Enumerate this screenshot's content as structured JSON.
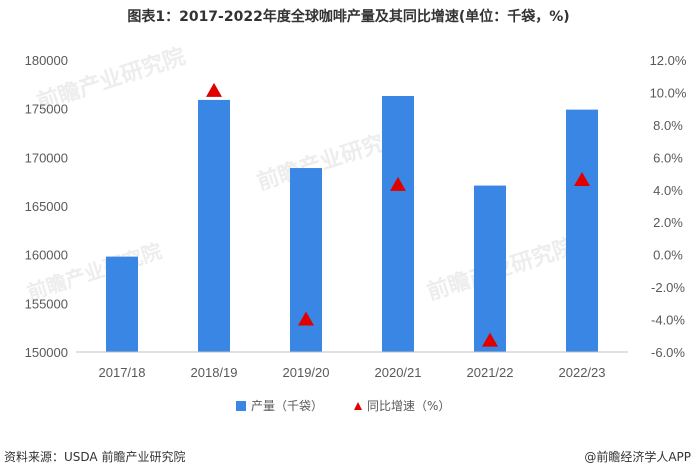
{
  "title": "图表1：2017-2022年度全球咖啡产量及其同比增速(单位：千袋，%)",
  "source_left": "资料来源：USDA 前瞻产业研究院",
  "source_right": "@前瞻经济学人APP",
  "watermark": "前瞻产业研究院",
  "colors": {
    "bar": "#3a86e4",
    "marker": "#e00000"
  },
  "chart_data": {
    "type": "bar",
    "categories": [
      "2017/18",
      "2018/19",
      "2019/20",
      "2020/21",
      "2021/22",
      "2022/23"
    ],
    "series": [
      {
        "name": "产量（千袋）",
        "type": "bar",
        "axis": "left",
        "values": [
          159800,
          175900,
          168900,
          176300,
          167100,
          174900
        ]
      },
      {
        "name": "同比增速（%）",
        "type": "scatter",
        "marker": "triangle",
        "axis": "right",
        "values": [
          null,
          10.1,
          -4.0,
          4.3,
          -5.3,
          4.6
        ]
      }
    ],
    "ylim": [
      150000,
      180000
    ],
    "yticks": [
      "150000",
      "155000",
      "160000",
      "165000",
      "170000",
      "175000",
      "180000"
    ],
    "y2lim": [
      -6.0,
      12.0
    ],
    "y2ticks": [
      "-6.0%",
      "-4.0%",
      "-2.0%",
      "0.0%",
      "2.0%",
      "4.0%",
      "6.0%",
      "8.0%",
      "10.0%",
      "12.0%"
    ],
    "grid": false,
    "legend": "bottom-center"
  }
}
